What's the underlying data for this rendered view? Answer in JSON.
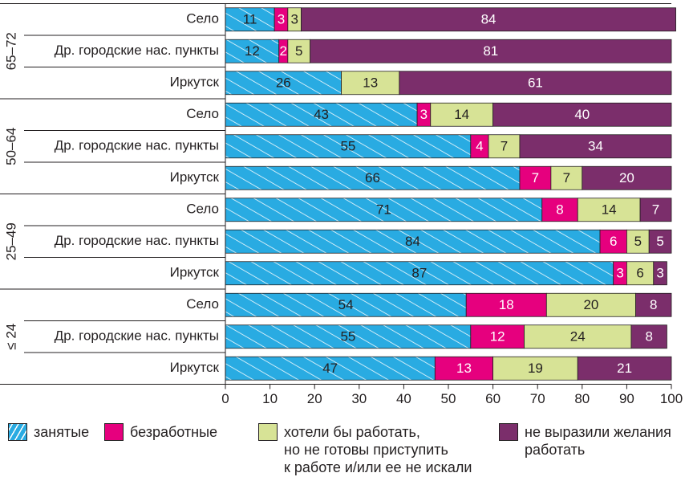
{
  "chart_data": {
    "type": "stacked-bar-horizontal",
    "groups": [
      {
        "name": "65–72",
        "categories": [
          "Село",
          "Др. городские нас. пункты",
          "Иркутск"
        ]
      },
      {
        "name": "50–64",
        "categories": [
          "Село",
          "Др. городские нас. пункты",
          "Иркутск"
        ]
      },
      {
        "name": "25–49",
        "categories": [
          "Село",
          "Др. городские нас. пункты",
          "Иркутск"
        ]
      },
      {
        "name": "≤ 24",
        "categories": [
          "Село",
          "Др. городские нас. пункты",
          "Иркутск"
        ]
      }
    ],
    "series": [
      {
        "name": "занятые",
        "color": "#29abe2",
        "hatch": true,
        "values": [
          11,
          12,
          26,
          43,
          55,
          66,
          71,
          84,
          87,
          54,
          55,
          47
        ]
      },
      {
        "name": "безработные",
        "color": "#e6007e",
        "values": [
          3,
          2,
          null,
          3,
          4,
          7,
          8,
          6,
          3,
          18,
          12,
          13
        ]
      },
      {
        "name": "хотели бы работать,\nно не готовы приступить\nк работе и/или ее не искали",
        "color": "#d7e396",
        "values": [
          3,
          5,
          13,
          14,
          7,
          7,
          14,
          5,
          6,
          20,
          24,
          19
        ]
      },
      {
        "name": "не выразили желания\nработать",
        "color": "#7b2e6b",
        "values": [
          84,
          81,
          61,
          40,
          34,
          20,
          7,
          5,
          3,
          8,
          8,
          21
        ]
      }
    ],
    "xlim": [
      0,
      100
    ],
    "xticks": [
      0,
      10,
      20,
      30,
      40,
      50,
      60,
      70,
      80,
      90,
      100
    ]
  }
}
